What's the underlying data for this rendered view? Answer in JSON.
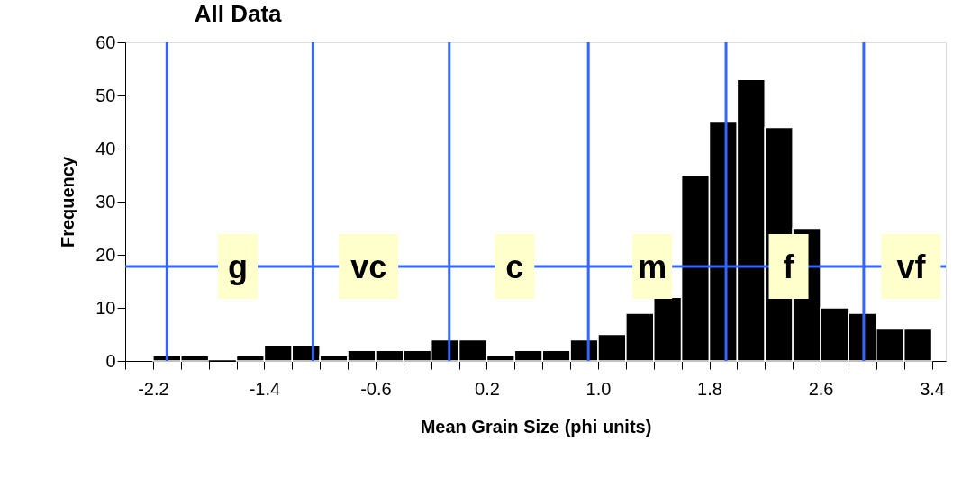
{
  "chart_data": {
    "type": "histogram",
    "title": "All Data",
    "xlabel": "Mean Grain Size (phi units)",
    "ylabel": "Frequency",
    "bins": [
      -2.2,
      -2.0,
      -1.8,
      -1.6,
      -1.4,
      -1.2,
      -1.0,
      -0.8,
      -0.6,
      -0.4,
      -0.2,
      0.0,
      0.2,
      0.4,
      0.6,
      0.8,
      1.0,
      1.2,
      1.4,
      1.6,
      1.8,
      2.0,
      2.2,
      2.4,
      2.6,
      2.8,
      3.0,
      3.2,
      3.4
    ],
    "values": [
      1,
      1,
      0,
      1,
      3,
      3,
      1,
      2,
      2,
      2,
      4,
      4,
      1,
      2,
      2,
      4,
      5,
      9,
      12,
      35,
      45,
      53,
      44,
      25,
      10,
      9,
      6,
      6
    ],
    "color": "#000000",
    "xlim": [
      -2.4,
      3.5
    ],
    "xticks": [
      {
        "value": -2.4,
        "label": null
      },
      -2.2,
      {
        "value": -2.0,
        "label": null
      },
      {
        "value": -1.8,
        "label": null
      },
      {
        "value": -1.6,
        "label": null
      },
      -1.4,
      {
        "value": -1.2,
        "label": null
      },
      {
        "value": -1.0,
        "label": null
      },
      {
        "value": -0.8,
        "label": null
      },
      -0.6,
      {
        "value": -0.4,
        "label": null
      },
      {
        "value": -0.2,
        "label": null
      },
      {
        "value": 0.0,
        "label": null
      },
      0.2,
      {
        "value": 0.4,
        "label": null
      },
      {
        "value": 0.6,
        "label": null
      },
      {
        "value": 0.8,
        "label": null
      },
      {
        "value": 1.0,
        "label": "1.0"
      },
      {
        "value": 1.2,
        "label": null
      },
      {
        "value": 1.4,
        "label": null
      },
      {
        "value": 1.6,
        "label": null
      },
      1.8,
      {
        "value": 2.0,
        "label": null
      },
      {
        "value": 2.2,
        "label": null
      },
      {
        "value": 2.4,
        "label": null
      },
      2.6,
      {
        "value": 2.8,
        "label": null
      },
      {
        "value": 3.0,
        "label": null
      },
      {
        "value": 3.2,
        "label": null
      },
      3.4
    ],
    "ylim": [
      0,
      60
    ],
    "yticks": [
      0,
      10,
      20,
      30,
      40,
      50,
      60
    ],
    "grid": false,
    "ref_lines": [
      {
        "axis": "x",
        "value": -2.1,
        "color": "#3366ff"
      },
      {
        "axis": "x",
        "value": -1.05,
        "color": "#3366ff"
      },
      {
        "axis": "x",
        "value": -0.07,
        "color": "#3366ff"
      },
      {
        "axis": "x",
        "value": 0.93,
        "color": "#3366ff"
      },
      {
        "axis": "x",
        "value": 1.92,
        "color": "#3366ff"
      },
      {
        "axis": "x",
        "value": 2.91,
        "color": "#3366ff"
      },
      {
        "axis": "y",
        "value": 17.8,
        "color": "#3366ff"
      }
    ],
    "annotations": [
      {
        "text": "g",
        "x": -1.59,
        "y": 17.8
      },
      {
        "text": "vc",
        "x": -0.65,
        "y": 17.8
      },
      {
        "text": "c",
        "x": 0.4,
        "y": 17.8
      },
      {
        "text": "m",
        "x": 1.39,
        "y": 17.8
      },
      {
        "text": "f",
        "x": 2.37,
        "y": 17.8
      },
      {
        "text": "vf",
        "x": 3.25,
        "y": 17.8
      }
    ]
  }
}
